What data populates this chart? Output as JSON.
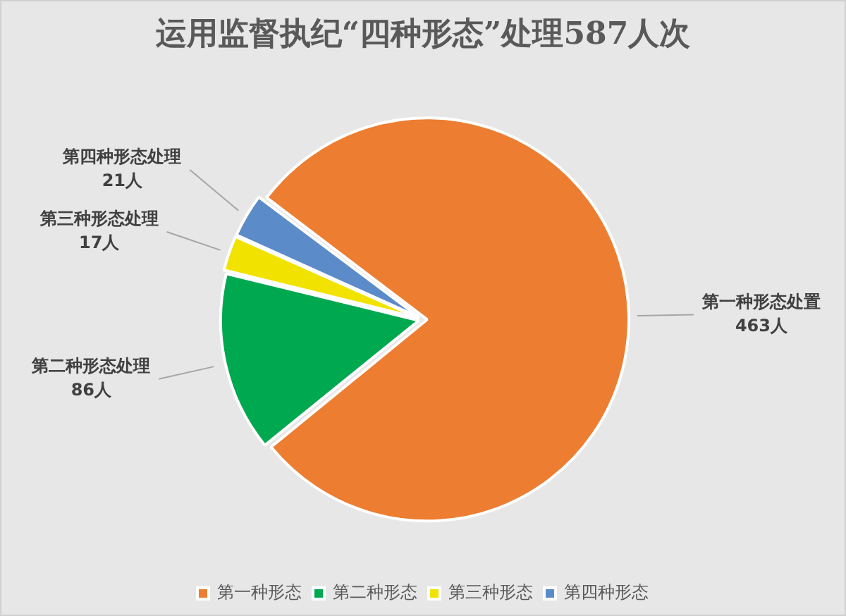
{
  "chart_data": {
    "type": "pie",
    "title": "运用监督执纪“四种形态”处理587人次",
    "categories": [
      "第一种形态",
      "第二种形态",
      "第三种形态",
      "第四种形态"
    ],
    "values": [
      463,
      86,
      17,
      21
    ],
    "colors": [
      "#ed7d31",
      "#00a84f",
      "#f2e200",
      "#5b8bc8"
    ],
    "value_labels": [
      "第一种形态处置\n463人",
      "第二种形态处理\n86人",
      "第三种形态处理\n17人",
      "第四种形态处理\n21人"
    ],
    "legend": "bottom"
  }
}
